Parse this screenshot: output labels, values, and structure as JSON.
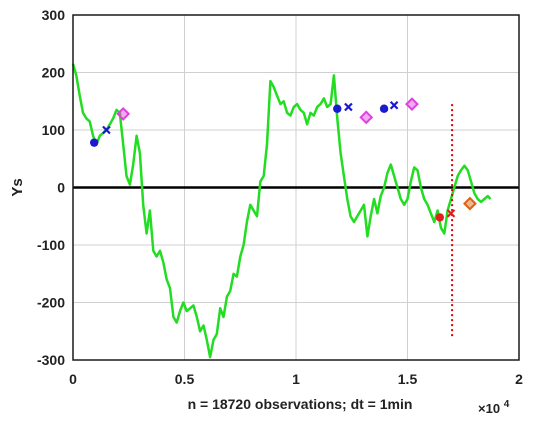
{
  "chart_data": {
    "type": "line",
    "title": "",
    "xlabel": "n = 18720  observations;   dt = 1min",
    "ylabel": "Ys",
    "x_exponent_label": "×10",
    "x_exponent_power": "4",
    "xlim": [
      0,
      2
    ],
    "ylim": [
      -300,
      300
    ],
    "x_ticks": [
      0,
      0.5,
      1,
      1.5,
      2
    ],
    "x_tick_labels": [
      "0",
      "0.5",
      "1",
      "1.5",
      "2"
    ],
    "y_ticks": [
      -300,
      -200,
      -100,
      0,
      100,
      200,
      300
    ],
    "y_tick_labels": [
      "-300",
      "-200",
      "-100",
      "0",
      "100",
      "200",
      "300"
    ],
    "grid": true,
    "colors": {
      "series": "#22dd22",
      "zero_line": "#000000",
      "vline": "#dd0000",
      "grid": "#d0d0d0",
      "marker_blue": "#1a1ad0",
      "marker_magenta": "#e040e0",
      "marker_red": "#e02020",
      "marker_orange": "#e06010"
    },
    "series": [
      {
        "name": "",
        "x": [
          0.0,
          0.015,
          0.03,
          0.045,
          0.06,
          0.075,
          0.09,
          0.105,
          0.12,
          0.135,
          0.15,
          0.165,
          0.18,
          0.195,
          0.21,
          0.225,
          0.24,
          0.255,
          0.27,
          0.285,
          0.3,
          0.315,
          0.33,
          0.345,
          0.36,
          0.375,
          0.39,
          0.405,
          0.42,
          0.435,
          0.45,
          0.465,
          0.48,
          0.495,
          0.51,
          0.525,
          0.54,
          0.555,
          0.57,
          0.585,
          0.6,
          0.615,
          0.63,
          0.645,
          0.66,
          0.675,
          0.69,
          0.705,
          0.72,
          0.735,
          0.75,
          0.765,
          0.78,
          0.795,
          0.81,
          0.825,
          0.84,
          0.855,
          0.87,
          0.885,
          0.9,
          0.915,
          0.93,
          0.945,
          0.96,
          0.975,
          0.99,
          1.005,
          1.02,
          1.035,
          1.05,
          1.065,
          1.08,
          1.095,
          1.11,
          1.125,
          1.14,
          1.155,
          1.17,
          1.185,
          1.2,
          1.215,
          1.23,
          1.245,
          1.26,
          1.275,
          1.29,
          1.305,
          1.32,
          1.335,
          1.35,
          1.365,
          1.38,
          1.395,
          1.41,
          1.425,
          1.44,
          1.455,
          1.47,
          1.485,
          1.5,
          1.515,
          1.53,
          1.545,
          1.56,
          1.575,
          1.59,
          1.605,
          1.62,
          1.635,
          1.65,
          1.665,
          1.68,
          1.695,
          1.71,
          1.725,
          1.74,
          1.755,
          1.77,
          1.785,
          1.8,
          1.815,
          1.83,
          1.845,
          1.86,
          1.872
        ],
        "y": [
          215,
          195,
          160,
          130,
          120,
          115,
          90,
          75,
          90,
          95,
          100,
          110,
          120,
          135,
          130,
          75,
          20,
          5,
          40,
          90,
          60,
          -30,
          -80,
          -40,
          -110,
          -120,
          -110,
          -130,
          -160,
          -175,
          -225,
          -235,
          -215,
          -200,
          -215,
          -210,
          -205,
          -225,
          -250,
          -240,
          -265,
          -295,
          -265,
          -255,
          -210,
          -225,
          -190,
          -180,
          -150,
          -155,
          -120,
          -100,
          -60,
          -30,
          -40,
          -50,
          10,
          20,
          75,
          185,
          175,
          160,
          145,
          150,
          130,
          125,
          140,
          145,
          135,
          130,
          110,
          130,
          125,
          140,
          145,
          155,
          140,
          145,
          195,
          120,
          60,
          20,
          -20,
          -50,
          -60,
          -50,
          -40,
          -30,
          -85,
          -50,
          -20,
          -45,
          -15,
          0,
          25,
          40,
          20,
          0,
          -20,
          -30,
          -20,
          10,
          35,
          30,
          0,
          -20,
          -30,
          -45,
          -60,
          -40,
          -70,
          -80,
          -40,
          -20,
          0,
          20,
          30,
          38,
          30,
          10,
          -10,
          -20,
          -25,
          -20,
          -15,
          -20
        ]
      }
    ],
    "reference_lines": [
      {
        "type": "horizontal",
        "y": 0
      },
      {
        "type": "vertical",
        "x": 1.7,
        "y_range": [
          -260,
          145
        ],
        "style": "dotted"
      }
    ],
    "markers": [
      {
        "shape": "circle",
        "color": "marker_blue",
        "x": 0.095,
        "y": 78
      },
      {
        "shape": "x",
        "color": "marker_blue",
        "x": 0.15,
        "y": 100
      },
      {
        "shape": "diamond",
        "color": "marker_magenta",
        "x": 0.225,
        "y": 128
      },
      {
        "shape": "circle",
        "color": "marker_blue",
        "x": 1.185,
        "y": 137
      },
      {
        "shape": "x",
        "color": "marker_blue",
        "x": 1.235,
        "y": 140
      },
      {
        "shape": "diamond",
        "color": "marker_magenta",
        "x": 1.315,
        "y": 122
      },
      {
        "shape": "circle",
        "color": "marker_blue",
        "x": 1.395,
        "y": 137
      },
      {
        "shape": "x",
        "color": "marker_blue",
        "x": 1.44,
        "y": 143
      },
      {
        "shape": "diamond",
        "color": "marker_magenta",
        "x": 1.52,
        "y": 145
      },
      {
        "shape": "circle",
        "color": "marker_red",
        "x": 1.645,
        "y": -52
      },
      {
        "shape": "x",
        "color": "marker_red",
        "x": 1.695,
        "y": -45
      },
      {
        "shape": "diamond",
        "color": "marker_orange",
        "x": 1.78,
        "y": -28
      }
    ]
  }
}
